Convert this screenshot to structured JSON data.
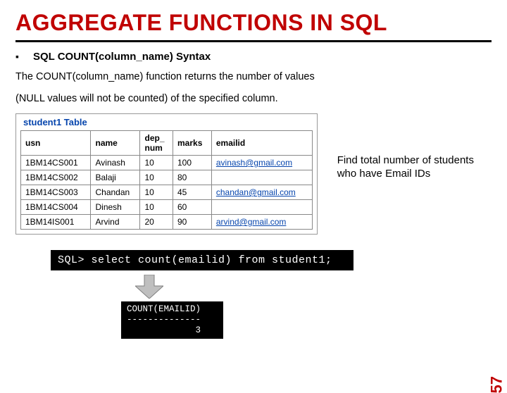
{
  "title": "AGGREGATE FUNCTIONS IN SQL",
  "subheading": "SQL COUNT(column_name) Syntax",
  "body_line1": "The COUNT(column_name) function returns the number of values",
  "body_line2": "(NULL values will not be counted) of the specified column.",
  "table_caption": "student1 Table",
  "table": {
    "columns": [
      "usn",
      "name",
      "dep_\nnum",
      "marks",
      "emailid"
    ],
    "rows": [
      [
        "1BM14CS001",
        "Avinash",
        "10",
        "100",
        "avinash@gmail.com"
      ],
      [
        "1BM14CS002",
        "Balaji",
        "10",
        "80",
        ""
      ],
      [
        "1BM14CS003",
        "Chandan",
        "10",
        "45",
        "chandan@gmail.com"
      ],
      [
        "1BM14CS004",
        "Dinesh",
        "10",
        "60",
        ""
      ],
      [
        "1BM14IS001",
        "Arvind",
        "20",
        "90",
        "arvind@gmail.com"
      ]
    ]
  },
  "callout": "Find total number of students who have Email IDs",
  "sql_query": "SQL> select count(emailid) from student1;",
  "result_header": "COUNT(EMAILID)",
  "result_divider": "--------------",
  "result_value": "             3",
  "page_number": "57",
  "colors": {
    "title": "#c00000",
    "link": "#0645ad",
    "terminal_bg": "#000000",
    "terminal_fg": "#ffffff",
    "arrow_fill": "#bfbfbf",
    "arrow_stroke": "#7f7f7f"
  }
}
